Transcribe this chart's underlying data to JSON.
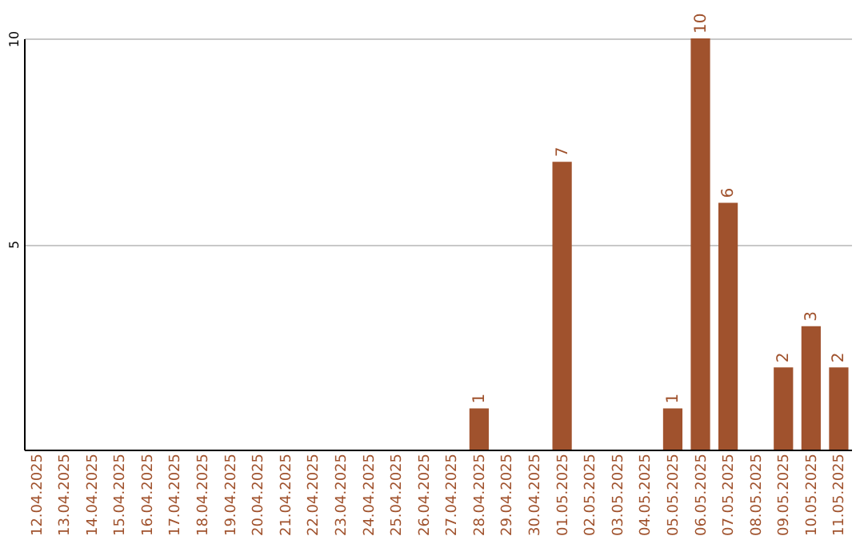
{
  "chart_data": {
    "type": "bar",
    "categories": [
      "12.04.2025",
      "13.04.2025",
      "14.04.2025",
      "15.04.2025",
      "16.04.2025",
      "17.04.2025",
      "18.04.2025",
      "19.04.2025",
      "20.04.2025",
      "21.04.2025",
      "22.04.2025",
      "23.04.2025",
      "24.04.2025",
      "25.04.2025",
      "26.04.2025",
      "27.04.2025",
      "28.04.2025",
      "29.04.2025",
      "30.04.2025",
      "01.05.2025",
      "02.05.2025",
      "03.05.2025",
      "04.05.2025",
      "05.05.2025",
      "06.05.2025",
      "07.05.2025",
      "08.05.2025",
      "09.05.2025",
      "10.05.2025",
      "11.05.2025"
    ],
    "values": [
      0,
      0,
      0,
      0,
      0,
      0,
      0,
      0,
      0,
      0,
      0,
      0,
      0,
      0,
      0,
      0,
      1,
      0,
      0,
      7,
      0,
      0,
      0,
      1,
      10,
      6,
      0,
      2,
      3,
      2
    ],
    "value_labels": [
      null,
      null,
      null,
      null,
      null,
      null,
      null,
      null,
      null,
      null,
      null,
      null,
      null,
      null,
      null,
      null,
      "1",
      null,
      null,
      "7",
      null,
      null,
      null,
      "1",
      "10",
      "6",
      null,
      "2",
      "3",
      "2"
    ],
    "color": "#a0522d",
    "ylim": [
      0,
      10
    ],
    "yticks": [
      5,
      10
    ],
    "grid": "y"
  }
}
